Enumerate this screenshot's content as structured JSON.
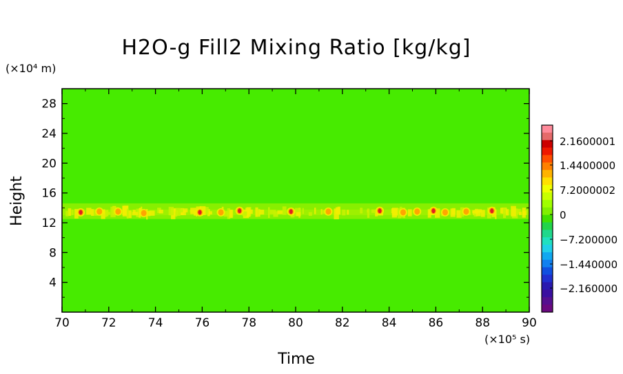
{
  "chart_data": {
    "type": "heatmap",
    "title": "H2O-g Fill2 Mixing Ratio [kg/kg]",
    "xlabel": "Time",
    "ylabel": "Height",
    "x_unit": "(×10⁵ s)",
    "y_unit": "(×10⁴ m)",
    "xlim": [
      70,
      90
    ],
    "ylim": [
      0,
      30
    ],
    "xticks": [
      "70",
      "72",
      "74",
      "76",
      "78",
      "80",
      "82",
      "84",
      "86",
      "88",
      "90"
    ],
    "yticks": [
      "4",
      "8",
      "12",
      "16",
      "20",
      "24",
      "28"
    ],
    "colorbar_labels": [
      "2.1600001",
      "1.4400000",
      "7.2000002",
      "0",
      "−7.200000",
      "−1.440000",
      "−2.160000"
    ],
    "background_value": 0,
    "band": {
      "height_center": 13.4,
      "height_range": [
        12.5,
        14.6
      ]
    },
    "hotspots": [
      {
        "x": 70.8,
        "y": 13.4,
        "level": "high"
      },
      {
        "x": 71.6,
        "y": 13.5,
        "level": "mid"
      },
      {
        "x": 72.4,
        "y": 13.5,
        "level": "mid"
      },
      {
        "x": 73.5,
        "y": 13.3,
        "level": "mid"
      },
      {
        "x": 75.9,
        "y": 13.4,
        "level": "high"
      },
      {
        "x": 76.8,
        "y": 13.4,
        "level": "mid"
      },
      {
        "x": 77.6,
        "y": 13.6,
        "level": "high"
      },
      {
        "x": 79.8,
        "y": 13.5,
        "level": "high"
      },
      {
        "x": 81.4,
        "y": 13.5,
        "level": "mid"
      },
      {
        "x": 83.6,
        "y": 13.6,
        "level": "high"
      },
      {
        "x": 84.6,
        "y": 13.4,
        "level": "mid"
      },
      {
        "x": 85.2,
        "y": 13.5,
        "level": "mid"
      },
      {
        "x": 85.9,
        "y": 13.6,
        "level": "high"
      },
      {
        "x": 86.4,
        "y": 13.4,
        "level": "mid"
      },
      {
        "x": 87.3,
        "y": 13.5,
        "level": "mid"
      },
      {
        "x": 88.4,
        "y": 13.6,
        "level": "high"
      }
    ]
  },
  "colors": {
    "field_zero": "#47eb00",
    "band_light": "#9ef000",
    "band_yellow": "#f2ee00",
    "band_orange": "#ffa500",
    "band_red": "#e02020",
    "colorbar": [
      "#ff8a9a",
      "#e56a6a",
      "#cc0000",
      "#ee1800",
      "#ff4d00",
      "#ff8000",
      "#ffb300",
      "#ffe000",
      "#f0ff00",
      "#c8ff00",
      "#a0ff00",
      "#80f000",
      "#40e000",
      "#22d44a",
      "#20d88c",
      "#20e0c0",
      "#20d0e8",
      "#10a8f0",
      "#1080f0",
      "#1050e0",
      "#2030d0",
      "#2a1ab0",
      "#3a10a0",
      "#55108f",
      "#6a0a80"
    ]
  }
}
